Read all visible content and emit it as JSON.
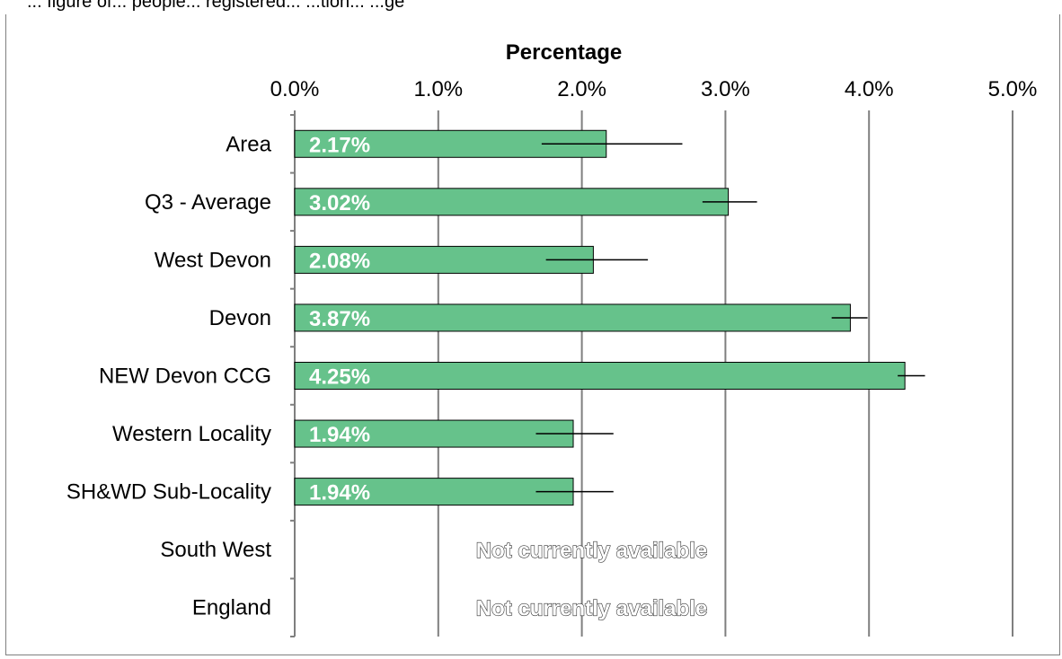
{
  "header_text": "... figure of... people... registered... ...tion... ...ge",
  "chart_data": {
    "type": "bar",
    "orientation": "horizontal",
    "xlabel": "Percentage",
    "xlim": [
      0,
      5.0
    ],
    "x_ticks": [
      "0.0%",
      "1.0%",
      "2.0%",
      "3.0%",
      "4.0%",
      "5.0%"
    ],
    "grid": true,
    "colors": {
      "bar": "#66c28b",
      "bar_edge": "#000000",
      "grid": "#7f7f7f"
    },
    "categories": [
      "Area",
      "Q3 - Average",
      "West Devon",
      "Devon",
      "NEW Devon CCG",
      "Western Locality",
      "SH&WD Sub-Locality",
      "South West",
      "England"
    ],
    "values": [
      2.17,
      3.02,
      2.08,
      3.87,
      4.25,
      1.94,
      1.94,
      null,
      null
    ],
    "value_labels": [
      "2.17%",
      "3.02%",
      "2.08%",
      "3.87%",
      "4.25%",
      "1.94%",
      "1.94%",
      "Not currently available",
      "Not currently available"
    ],
    "error_low": [
      1.72,
      2.84,
      1.75,
      3.74,
      4.2,
      1.68,
      1.68,
      null,
      null
    ],
    "error_high": [
      2.7,
      3.22,
      2.46,
      3.99,
      4.39,
      2.22,
      2.22,
      null,
      null
    ]
  }
}
